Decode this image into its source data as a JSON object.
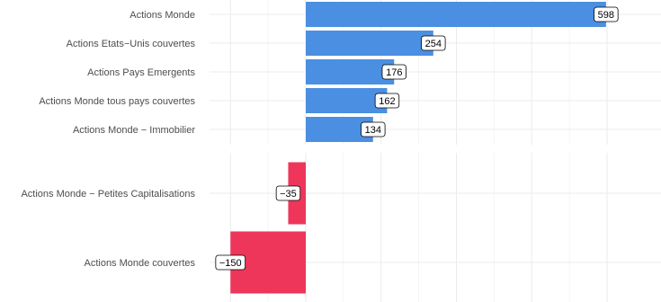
{
  "chart_data": {
    "type": "bar",
    "orientation": "horizontal",
    "grid": true,
    "xlim": [
      -155,
      700
    ],
    "panels": [
      {
        "categories": [
          "Actions Monde",
          "Actions Etats−Unis couvertes",
          "Actions Pays Emergents",
          "Actions Monde tous pays couvertes",
          "Actions Monde − Immobilier"
        ],
        "values": [
          598,
          254,
          176,
          162,
          134
        ],
        "labels": [
          "598",
          "254",
          "176",
          "162",
          "134"
        ]
      },
      {
        "categories": [
          "Actions Monde − Petites Capitalisations",
          "Actions Monde couvertes"
        ],
        "values": [
          -35,
          -150
        ],
        "labels": [
          "−35",
          "−150"
        ]
      }
    ],
    "colors": {
      "positive": "#4a8fe2",
      "negative": "#ee365a"
    }
  }
}
